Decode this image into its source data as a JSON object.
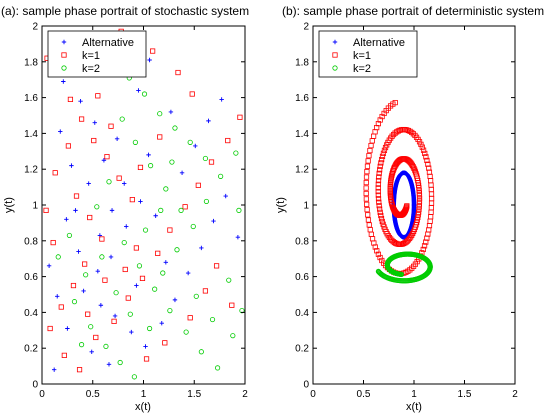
{
  "colors": {
    "alternative": "#0000ff",
    "k1": "#ff0000",
    "k2": "#00cc00"
  },
  "chart_data": [
    {
      "type": "scatter",
      "title": "(a): sample phase portrait of stochastic system",
      "xlabel": "x(t)",
      "ylabel": "y(t)",
      "xlim": [
        0,
        2
      ],
      "ylim": [
        0,
        2
      ],
      "xticks": [
        "0",
        "0.5",
        "1",
        "1.5",
        "2"
      ],
      "yticks": [
        "0",
        "0.2",
        "0.4",
        "0.6",
        "0.8",
        "1",
        "1.2",
        "1.4",
        "1.6",
        "1.8",
        "2"
      ],
      "legend": {
        "placement": "top-left",
        "entries": [
          "Alternative",
          "k=1",
          "k=2"
        ]
      },
      "series": [
        {
          "name": "Alternative",
          "marker": "plus",
          "points": [
            [
              0.12,
              0.08
            ],
            [
              0.25,
              0.31
            ],
            [
              0.41,
              0.52
            ],
            [
              0.55,
              0.63
            ],
            [
              0.68,
              0.71
            ],
            [
              0.83,
              0.88
            ],
            [
              0.97,
              1.02
            ],
            [
              1.12,
              0.94
            ],
            [
              0.33,
              0.97
            ],
            [
              0.46,
              1.12
            ],
            [
              0.61,
              1.25
            ],
            [
              0.74,
              1.37
            ],
            [
              0.52,
              1.46
            ],
            [
              0.38,
              1.58
            ],
            [
              0.21,
              1.69
            ],
            [
              0.44,
              1.77
            ],
            [
              0.63,
              1.88
            ],
            [
              0.87,
              1.93
            ],
            [
              1.06,
              1.81
            ],
            [
              0.18,
              1.41
            ],
            [
              0.29,
              1.22
            ],
            [
              0.58,
              0.44
            ],
            [
              0.72,
              0.38
            ],
            [
              0.88,
              0.29
            ],
            [
              1.02,
              0.21
            ],
            [
              1.18,
              0.34
            ],
            [
              1.31,
              0.47
            ],
            [
              1.44,
              0.62
            ],
            [
              1.57,
              0.76
            ],
            [
              1.69,
              0.91
            ],
            [
              1.81,
              1.05
            ],
            [
              1.93,
              0.82
            ],
            [
              0.07,
              0.66
            ],
            [
              0.15,
              0.49
            ],
            [
              0.49,
              0.18
            ],
            [
              0.66,
              0.11
            ],
            [
              0.93,
              0.55
            ],
            [
              1.22,
              0.68
            ],
            [
              1.38,
              1.18
            ],
            [
              1.51,
              1.33
            ],
            [
              1.64,
              1.47
            ],
            [
              1.77,
              1.59
            ],
            [
              0.81,
              1.12
            ],
            [
              0.69,
              0.97
            ],
            [
              0.57,
              0.83
            ],
            [
              0.36,
              0.74
            ],
            [
              1.05,
              1.28
            ],
            [
              1.27,
              1.52
            ],
            [
              0.95,
              1.64
            ],
            [
              0.24,
              0.92
            ]
          ]
        },
        {
          "name": "k=1",
          "marker": "square",
          "points": [
            [
              0.05,
              1.82
            ],
            [
              0.17,
              1.73
            ],
            [
              0.28,
              1.59
            ],
            [
              0.39,
              1.48
            ],
            [
              0.51,
              1.36
            ],
            [
              0.64,
              1.27
            ],
            [
              0.76,
              1.15
            ],
            [
              0.89,
              1.03
            ],
            [
              0.26,
              1.33
            ],
            [
              0.13,
              1.18
            ],
            [
              0.34,
              1.05
            ],
            [
              0.47,
              0.93
            ],
            [
              0.59,
              0.81
            ],
            [
              0.42,
              0.67
            ],
            [
              0.31,
              0.55
            ],
            [
              0.19,
              0.43
            ],
            [
              0.08,
              0.31
            ],
            [
              0.53,
              0.26
            ],
            [
              0.71,
              0.35
            ],
            [
              0.85,
              0.48
            ],
            [
              0.99,
              0.59
            ],
            [
              1.14,
              0.73
            ],
            [
              1.26,
              0.86
            ],
            [
              1.41,
              0.99
            ],
            [
              1.54,
              1.11
            ],
            [
              1.67,
              1.24
            ],
            [
              1.83,
              1.36
            ],
            [
              1.95,
              1.49
            ],
            [
              1.48,
              1.62
            ],
            [
              1.34,
              1.74
            ],
            [
              1.09,
              1.86
            ],
            [
              0.78,
              1.97
            ],
            [
              0.62,
              0.58
            ],
            [
              0.45,
              0.39
            ],
            [
              0.22,
              0.16
            ],
            [
              0.37,
              0.08
            ],
            [
              1.03,
              0.14
            ],
            [
              1.21,
              0.23
            ],
            [
              1.46,
              0.37
            ],
            [
              1.61,
              0.52
            ],
            [
              0.93,
              0.76
            ],
            [
              0.68,
              1.44
            ],
            [
              0.55,
              1.61
            ],
            [
              0.11,
              0.79
            ],
            [
              0.04,
              0.97
            ],
            [
              1.72,
              0.66
            ],
            [
              1.87,
              0.44
            ],
            [
              0.97,
              1.21
            ],
            [
              1.16,
              1.38
            ],
            [
              0.82,
              0.64
            ]
          ]
        },
        {
          "name": "k=2",
          "marker": "circle",
          "points": [
            [
              0.58,
              1.94
            ],
            [
              0.71,
              1.84
            ],
            [
              0.86,
              1.71
            ],
            [
              1.01,
              1.62
            ],
            [
              1.16,
              1.51
            ],
            [
              1.31,
              1.43
            ],
            [
              1.46,
              1.35
            ],
            [
              1.61,
              1.26
            ],
            [
              0.79,
              1.48
            ],
            [
              0.92,
              1.35
            ],
            [
              1.07,
              1.22
            ],
            [
              1.22,
              1.09
            ],
            [
              1.37,
              0.97
            ],
            [
              0.66,
              1.13
            ],
            [
              0.54,
              0.99
            ],
            [
              0.81,
              0.79
            ],
            [
              0.96,
              0.66
            ],
            [
              1.11,
              0.53
            ],
            [
              1.26,
              0.41
            ],
            [
              1.42,
              0.29
            ],
            [
              1.57,
              0.18
            ],
            [
              1.73,
              0.09
            ],
            [
              1.88,
              0.27
            ],
            [
              1.97,
              0.41
            ],
            [
              0.43,
              0.61
            ],
            [
              0.32,
              0.46
            ],
            [
              0.48,
              0.32
            ],
            [
              0.63,
              0.21
            ],
            [
              0.77,
              0.12
            ],
            [
              0.91,
              0.04
            ],
            [
              1.06,
              0.31
            ],
            [
              1.19,
              0.62
            ],
            [
              1.33,
              0.75
            ],
            [
              1.49,
              0.88
            ],
            [
              1.62,
              1.02
            ],
            [
              1.76,
              1.16
            ],
            [
              1.91,
              1.29
            ],
            [
              0.27,
              0.83
            ],
            [
              0.16,
              0.71
            ],
            [
              0.39,
              0.22
            ],
            [
              1.52,
              0.49
            ],
            [
              1.68,
              0.36
            ],
            [
              1.84,
              0.58
            ],
            [
              0.73,
              0.51
            ],
            [
              0.87,
              0.39
            ],
            [
              1.02,
              0.86
            ],
            [
              1.17,
              0.97
            ],
            [
              0.59,
              0.71
            ],
            [
              1.28,
              1.24
            ],
            [
              1.94,
              0.97
            ]
          ]
        }
      ]
    },
    {
      "type": "scatter",
      "title": "(b): sample phase portrait of deterministic system",
      "xlabel": "x(t)",
      "ylabel": "y(t)",
      "xlim": [
        0,
        2
      ],
      "ylim": [
        0,
        2
      ],
      "xticks": [
        "0",
        "0.5",
        "1",
        "1.5",
        "2"
      ],
      "yticks": [
        "0",
        "0.2",
        "0.4",
        "0.6",
        "0.8",
        "1",
        "1.2",
        "1.4",
        "1.6",
        "1.8",
        "2"
      ],
      "legend": {
        "placement": "top-left",
        "entries": [
          "Alternative",
          "k=1",
          "k=2"
        ]
      },
      "series": [
        {
          "name": "Alternative",
          "marker": "plus",
          "curve": {
            "center": [
              0.9,
              1.0
            ],
            "radius": [
              0.1,
              0.18
            ],
            "radius_decay": 0,
            "start_angle": 0,
            "turns": 6,
            "count": 360
          }
        },
        {
          "name": "k=1",
          "marker": "square",
          "curve": {
            "center": [
              0.88,
              1.06
            ],
            "radius": [
              0.38,
              0.52
            ],
            "radius_decay": 0.82,
            "start_angle": 100,
            "turns": 2.6,
            "count": 260
          }
        },
        {
          "name": "k=2",
          "marker": "circle",
          "curve": {
            "center": [
              0.92,
              0.66
            ],
            "radius": [
              0.29,
              0.09
            ],
            "radius_decay": 0.45,
            "start_angle": 200,
            "turns": 1.15,
            "count": 200
          }
        }
      ]
    }
  ]
}
